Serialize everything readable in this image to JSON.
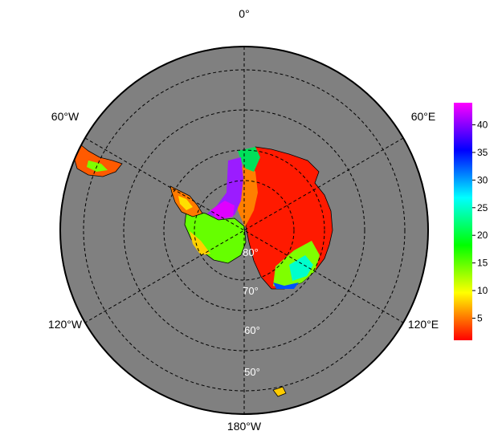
{
  "map": {
    "projection": "south-polar-stereographic",
    "ocean_color": "#808080",
    "background_color": "#ffffff",
    "grid_style": "dashed",
    "longitude_labels": [
      "0°",
      "60°E",
      "120°E",
      "180°W",
      "120°W",
      "60°W"
    ],
    "latitude_labels": [
      "80°",
      "70°",
      "60°",
      "50°"
    ]
  },
  "colorbar": {
    "ticks": [
      "5",
      "10",
      "15",
      "20",
      "25",
      "30",
      "35",
      "40"
    ],
    "range": [
      1,
      44
    ],
    "colors": [
      "#ff0000",
      "#ff7f00",
      "#ffff00",
      "#7fff00",
      "#00ff00",
      "#00ff7f",
      "#00ffff",
      "#007fff",
      "#0000ff",
      "#7f00ff",
      "#ff00ff"
    ]
  }
}
